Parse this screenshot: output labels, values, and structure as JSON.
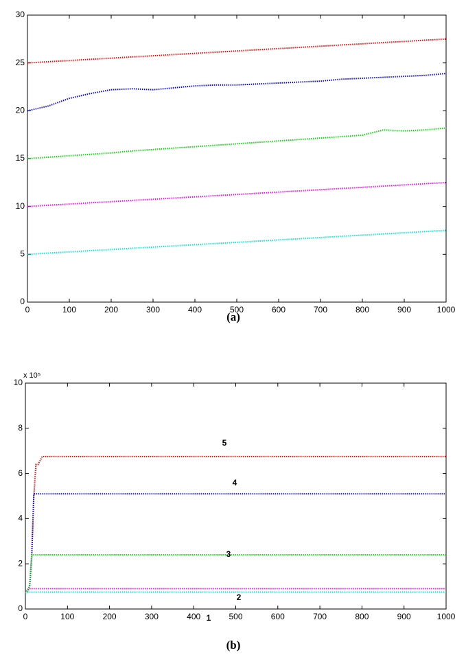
{
  "chart_data": [
    {
      "type": "line",
      "caption": "(a)",
      "x": [
        0,
        50,
        100,
        150,
        200,
        250,
        300,
        350,
        400,
        450,
        500,
        550,
        600,
        650,
        700,
        750,
        800,
        850,
        900,
        950,
        1000
      ],
      "series": [
        {
          "color": "#ff0000",
          "values": [
            25,
            25.13,
            25.25,
            25.38,
            25.5,
            25.63,
            25.75,
            25.88,
            26,
            26.13,
            26.25,
            26.38,
            26.5,
            26.63,
            26.75,
            26.88,
            27,
            27.13,
            27.25,
            27.38,
            27.5
          ]
        },
        {
          "color": "#0000ff",
          "values": [
            20,
            20.5,
            21.3,
            21.8,
            22.2,
            22.3,
            22.2,
            22.4,
            22.6,
            22.7,
            22.7,
            22.8,
            22.9,
            23,
            23.1,
            23.3,
            23.4,
            23.5,
            23.6,
            23.7,
            23.9
          ]
        },
        {
          "color": "#00dd00",
          "values": [
            15,
            15.15,
            15.3,
            15.45,
            15.6,
            15.8,
            15.95,
            16.1,
            16.25,
            16.4,
            16.55,
            16.7,
            16.85,
            17,
            17.15,
            17.3,
            17.45,
            18,
            17.9,
            18,
            18.2
          ]
        },
        {
          "color": "#ff00ff",
          "values": [
            10,
            10.13,
            10.25,
            10.38,
            10.5,
            10.63,
            10.75,
            10.88,
            11,
            11.13,
            11.25,
            11.38,
            11.5,
            11.63,
            11.75,
            11.88,
            12,
            12.13,
            12.25,
            12.38,
            12.5
          ]
        },
        {
          "color": "#00e5e5",
          "values": [
            5,
            5.13,
            5.25,
            5.38,
            5.5,
            5.63,
            5.75,
            5.88,
            6,
            6.13,
            6.25,
            6.38,
            6.5,
            6.63,
            6.75,
            6.88,
            7,
            7.13,
            7.25,
            7.38,
            7.5
          ]
        }
      ],
      "xlim": [
        0,
        1000
      ],
      "xticks": [
        0,
        100,
        200,
        300,
        400,
        500,
        600,
        700,
        800,
        900,
        1000
      ],
      "ylim": [
        0,
        30
      ],
      "yticks": [
        0,
        5,
        10,
        15,
        20,
        25,
        30
      ]
    },
    {
      "type": "line",
      "caption": "(b)",
      "y_multiplier": "x 10⁵",
      "x": [
        0,
        10,
        15,
        20,
        25,
        30,
        40,
        100,
        200,
        300,
        400,
        500,
        600,
        700,
        800,
        900,
        1000
      ],
      "series": [
        {
          "color": "#ff0000",
          "values": [
            0.7,
            1.0,
            2.3,
            5.0,
            6.4,
            6.4,
            6.75,
            6.75,
            6.75,
            6.75,
            6.75,
            6.75,
            6.75,
            6.75,
            6.75,
            6.75,
            6.75
          ]
        },
        {
          "color": "#0000ff",
          "values": [
            0.7,
            1.0,
            2.3,
            5.1,
            5.1,
            5.1,
            5.1,
            5.1,
            5.1,
            5.1,
            5.1,
            5.1,
            5.1,
            5.1,
            5.1,
            5.1,
            5.1
          ]
        },
        {
          "color": "#00dd00",
          "values": [
            0.7,
            1.0,
            2.4,
            2.4,
            2.4,
            2.4,
            2.4,
            2.4,
            2.4,
            2.4,
            2.4,
            2.4,
            2.4,
            2.4,
            2.4,
            2.4,
            2.4
          ]
        },
        {
          "color": "#ff00ff",
          "values": [
            0.7,
            0.9,
            0.9,
            0.9,
            0.9,
            0.9,
            0.9,
            0.9,
            0.9,
            0.9,
            0.9,
            0.9,
            0.9,
            0.9,
            0.9,
            0.9,
            0.9
          ]
        },
        {
          "color": "#00e5e5",
          "values": [
            0.7,
            0.75,
            0.75,
            0.75,
            0.75,
            0.75,
            0.75,
            0.75,
            0.75,
            0.75,
            0.75,
            0.75,
            0.75,
            0.75,
            0.75,
            0.75,
            0.75
          ]
        }
      ],
      "annotations": [
        "5",
        "4",
        "3",
        "2",
        "1"
      ],
      "xlim": [
        0,
        1000
      ],
      "xticks": [
        0,
        100,
        200,
        300,
        400,
        500,
        600,
        700,
        800,
        900,
        1000
      ],
      "ylim": [
        0,
        10
      ],
      "yticks": [
        0,
        2,
        4,
        6,
        8,
        10
      ]
    }
  ]
}
